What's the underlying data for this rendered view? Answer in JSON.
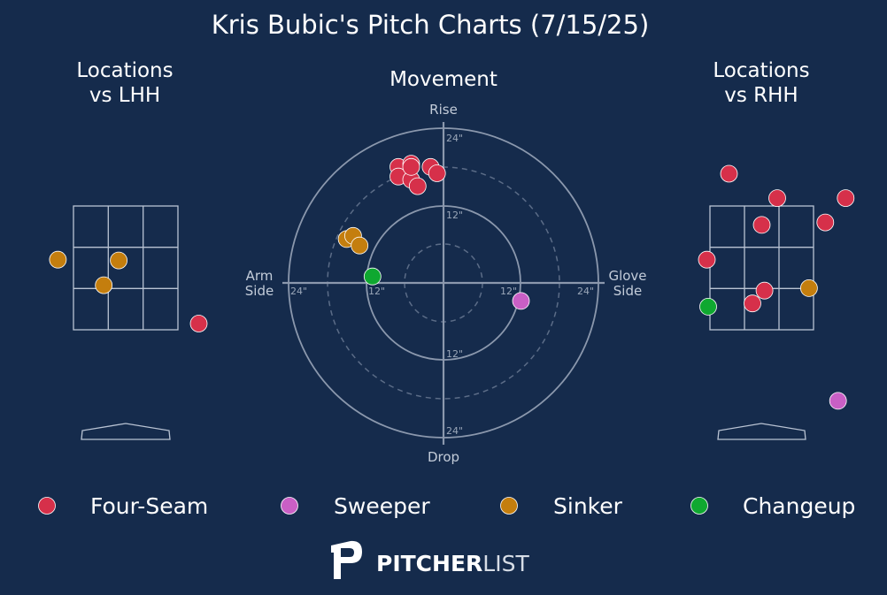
{
  "title": "Kris Bubic's Pitch Charts (7/15/25)",
  "panels": {
    "lhh_title_line1": "Locations",
    "lhh_title_line2": "vs LHH",
    "movement_title": "Movement",
    "rhh_title_line1": "Locations",
    "rhh_title_line2": "vs RHH"
  },
  "movement_axes": {
    "top": "Rise",
    "bottom": "Drop",
    "left_line1": "Arm",
    "left_line2": "Side",
    "right_line1": "Glove",
    "right_line2": "Side",
    "ring_labels": {
      "top_24": "24\"",
      "top_12": "12\"",
      "bottom_12": "12\"",
      "bottom_24": "24\"",
      "left_24": "24\"",
      "left_12": "12\"",
      "right_12": "12\"",
      "right_24": "24\""
    }
  },
  "pitch_types": [
    {
      "name": "Four-Seam",
      "color": "#d6304a"
    },
    {
      "name": "Sweeper",
      "color": "#c95fc5"
    },
    {
      "name": "Sinker",
      "color": "#c47e0e"
    },
    {
      "name": "Changeup",
      "color": "#0fa830"
    }
  ],
  "logo": {
    "part1": "PITCHER",
    "part2": "LIST"
  },
  "chart_data": [
    {
      "type": "scatter",
      "title": "Locations vs LHH",
      "xlabel": "",
      "ylabel": "",
      "units": "zone widths from center (zone = 3 wide)",
      "points": [
        {
          "pitch": "Sinker",
          "x": -1.95,
          "y": 0.2
        },
        {
          "pitch": "Sinker",
          "x": -0.2,
          "y": 0.18
        },
        {
          "pitch": "Sinker",
          "x": -0.63,
          "y": -0.42
        },
        {
          "pitch": "Four-Seam",
          "x": 2.1,
          "y": -1.35
        }
      ]
    },
    {
      "type": "scatter",
      "title": "Movement",
      "xlabel": "",
      "ylabel": "",
      "units": "inches (positive x = glove side, positive y = rise)",
      "xlim": [
        -24,
        24
      ],
      "ylim": [
        -24,
        24
      ],
      "points": [
        {
          "pitch": "Four-Seam",
          "x": -7,
          "y": 18
        },
        {
          "pitch": "Four-Seam",
          "x": -5,
          "y": 18.5
        },
        {
          "pitch": "Four-Seam",
          "x": -2,
          "y": 18
        },
        {
          "pitch": "Four-Seam",
          "x": -7,
          "y": 16.5
        },
        {
          "pitch": "Four-Seam",
          "x": -5,
          "y": 16
        },
        {
          "pitch": "Four-Seam",
          "x": -1,
          "y": 17
        },
        {
          "pitch": "Four-Seam",
          "x": -4,
          "y": 15
        },
        {
          "pitch": "Four-Seam",
          "x": -5,
          "y": 18
        },
        {
          "pitch": "Sinker",
          "x": -15,
          "y": 6.8
        },
        {
          "pitch": "Sinker",
          "x": -14,
          "y": 7.3
        },
        {
          "pitch": "Sinker",
          "x": -13,
          "y": 5.8
        },
        {
          "pitch": "Changeup",
          "x": -11,
          "y": 1
        },
        {
          "pitch": "Sweeper",
          "x": 12,
          "y": -2.8
        }
      ]
    },
    {
      "type": "scatter",
      "title": "Locations vs RHH",
      "xlabel": "",
      "ylabel": "",
      "units": "zone widths from center (zone = 3 wide)",
      "points": [
        {
          "pitch": "Four-Seam",
          "x": -0.95,
          "y": 2.28
        },
        {
          "pitch": "Four-Seam",
          "x": 0.45,
          "y": 1.69
        },
        {
          "pitch": "Four-Seam",
          "x": 2.43,
          "y": 1.69
        },
        {
          "pitch": "Four-Seam",
          "x": 0.0,
          "y": 1.04
        },
        {
          "pitch": "Four-Seam",
          "x": 1.84,
          "y": 1.1
        },
        {
          "pitch": "Four-Seam",
          "x": -1.59,
          "y": 0.2
        },
        {
          "pitch": "Four-Seam",
          "x": 0.08,
          "y": -0.55
        },
        {
          "pitch": "Four-Seam",
          "x": -0.27,
          "y": -0.86
        },
        {
          "pitch": "Sinker",
          "x": 1.37,
          "y": -0.49
        },
        {
          "pitch": "Changeup",
          "x": -1.55,
          "y": -0.94
        },
        {
          "pitch": "Sweeper",
          "x": 2.21,
          "y": -3.22
        }
      ]
    }
  ]
}
